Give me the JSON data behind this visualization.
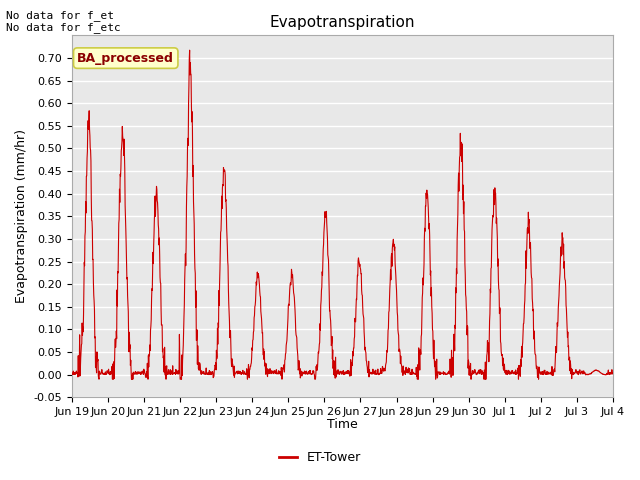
{
  "title": "Evapotranspiration",
  "ylabel": "Evapotranspiration (mm/hr)",
  "xlabel": "Time",
  "text_top_left": "No data for f_et\nNo data for f_etc",
  "annotation_box": "BA_processed",
  "legend_label": "ET-Tower",
  "line_color": "#cc0000",
  "fig_facecolor": "#ffffff",
  "axes_facecolor": "#e8e8e8",
  "grid_color": "#ffffff",
  "ylim": [
    -0.05,
    0.75
  ],
  "yticks": [
    -0.05,
    0.0,
    0.05,
    0.1,
    0.15,
    0.2,
    0.25,
    0.3,
    0.35,
    0.4,
    0.45,
    0.5,
    0.55,
    0.6,
    0.65,
    0.7
  ],
  "xtick_labels": [
    "Jun 19",
    "Jun 20",
    "Jun 21",
    "Jun 22",
    "Jun 23",
    "Jun 24",
    "Jun 25",
    "Jun 26",
    "Jun 27",
    "Jun 28",
    "Jun 29",
    "Jun 30",
    "Jul 1",
    "Jul 2",
    "Jul 3",
    "Jul 4"
  ],
  "daily_peaks": [
    0.56,
    0.54,
    0.4,
    0.67,
    0.46,
    0.22,
    0.22,
    0.36,
    0.25,
    0.3,
    0.4,
    0.52,
    0.4,
    0.33,
    0.29,
    0.01
  ],
  "title_fontsize": 11,
  "label_fontsize": 9,
  "tick_fontsize": 8,
  "annotation_fontsize": 9,
  "toptext_fontsize": 8
}
